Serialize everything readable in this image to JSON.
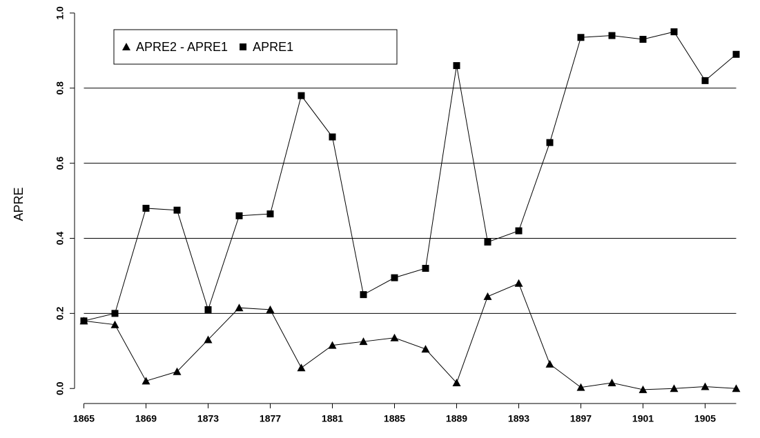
{
  "chart_data": {
    "type": "line",
    "ylabel": "APRE",
    "x": [
      1865,
      1867,
      1869,
      1871,
      1873,
      1875,
      1877,
      1879,
      1881,
      1883,
      1885,
      1887,
      1889,
      1891,
      1893,
      1895,
      1897,
      1899,
      1901,
      1903,
      1905,
      1907
    ],
    "series": [
      {
        "name": "APRE2 - APRE1",
        "color": "#000000",
        "marker": "triangle",
        "values": [
          0.18,
          0.17,
          0.02,
          0.045,
          0.13,
          0.215,
          0.21,
          0.055,
          0.115,
          0.125,
          0.135,
          0.105,
          0.015,
          0.245,
          0.28,
          0.065,
          0.003,
          0.015,
          -0.003,
          0.0,
          0.005,
          0.0
        ]
      },
      {
        "name": "APRE1",
        "color": "#000000",
        "marker": "square",
        "values": [
          0.18,
          0.2,
          0.48,
          0.475,
          0.21,
          0.46,
          0.465,
          0.78,
          0.67,
          0.25,
          0.295,
          0.32,
          0.86,
          0.39,
          0.42,
          0.655,
          0.935,
          0.94,
          0.93,
          0.95,
          0.82,
          0.89
        ]
      }
    ],
    "xlim": [
      1864.4,
      1907.6
    ],
    "xticks": [
      1865,
      1869,
      1873,
      1877,
      1881,
      1885,
      1889,
      1893,
      1897,
      1901,
      1905
    ],
    "ylim": [
      -0.04,
      1.02
    ],
    "yticks": [
      {
        "value": 0,
        "label": "0.0"
      },
      {
        "value": 0.2,
        "label": "0.2"
      },
      {
        "value": 0.4,
        "label": "0.4"
      },
      {
        "value": 0.6,
        "label": "0.6"
      },
      {
        "value": 0.8,
        "label": "0.8"
      },
      {
        "value": 1,
        "label": "1.0"
      }
    ],
    "grid": true,
    "legend": "top-left"
  }
}
